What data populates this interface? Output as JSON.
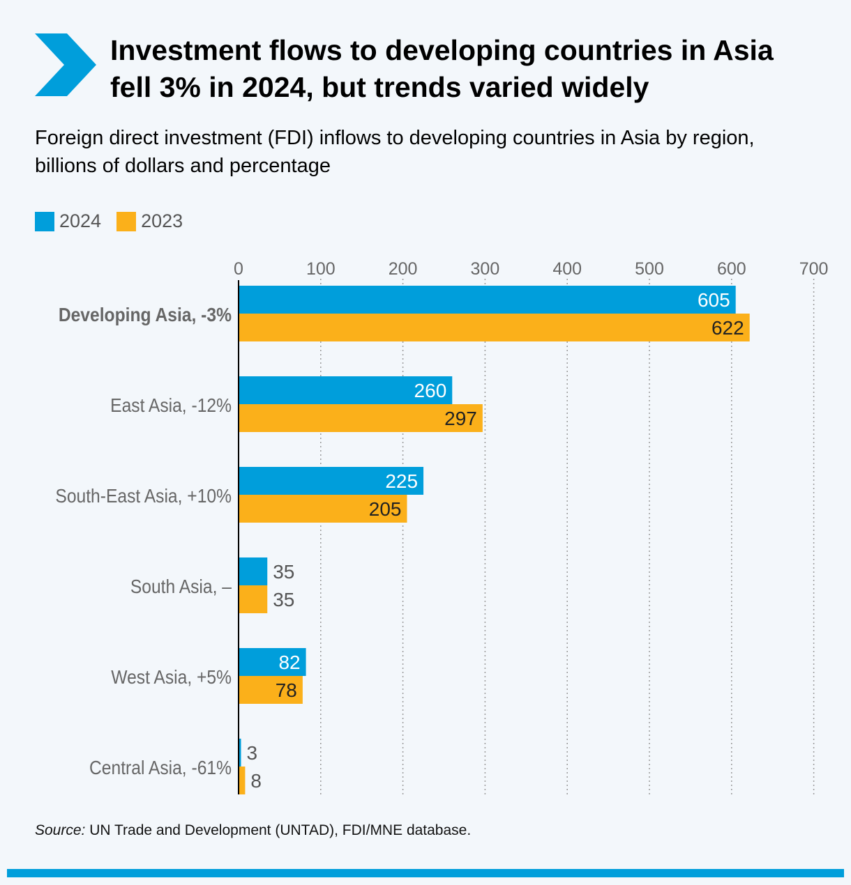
{
  "title": "Investment flows to developing countries in Asia fell 3% in 2024, but trends varied widely",
  "subtitle": "Foreign direct investment (FDI) inflows to developing countries in Asia by region, billions of dollars and percentage",
  "source": {
    "label": "Source:",
    "text": " UN Trade and Development (UNTAD), FDI/MNE database."
  },
  "colors": {
    "series_2024": "#009edb",
    "series_2023": "#fbb01a",
    "accent": "#009edb"
  },
  "icons": {
    "header": "chevron-right-icon"
  },
  "chart_data": {
    "type": "bar",
    "orientation": "horizontal",
    "title": "Foreign direct investment (FDI) inflows to developing countries in Asia by region, billions of dollars and percentage",
    "xlabel": "",
    "ylabel": "",
    "xlim": [
      0,
      700
    ],
    "xticks": [
      0,
      100,
      200,
      300,
      400,
      500,
      600,
      700
    ],
    "grid": true,
    "legend_position": "top-left",
    "categories": [
      "Developing Asia, -3%",
      "East Asia, -12%",
      "South-East Asia, +10%",
      "South Asia, –",
      "West Asia, +5%",
      "Central Asia, -61%"
    ],
    "emphasized_category": 0,
    "series": [
      {
        "name": "2024",
        "values": [
          605,
          260,
          225,
          35,
          82,
          3
        ]
      },
      {
        "name": "2023",
        "values": [
          622,
          297,
          205,
          35,
          78,
          8
        ]
      }
    ]
  }
}
